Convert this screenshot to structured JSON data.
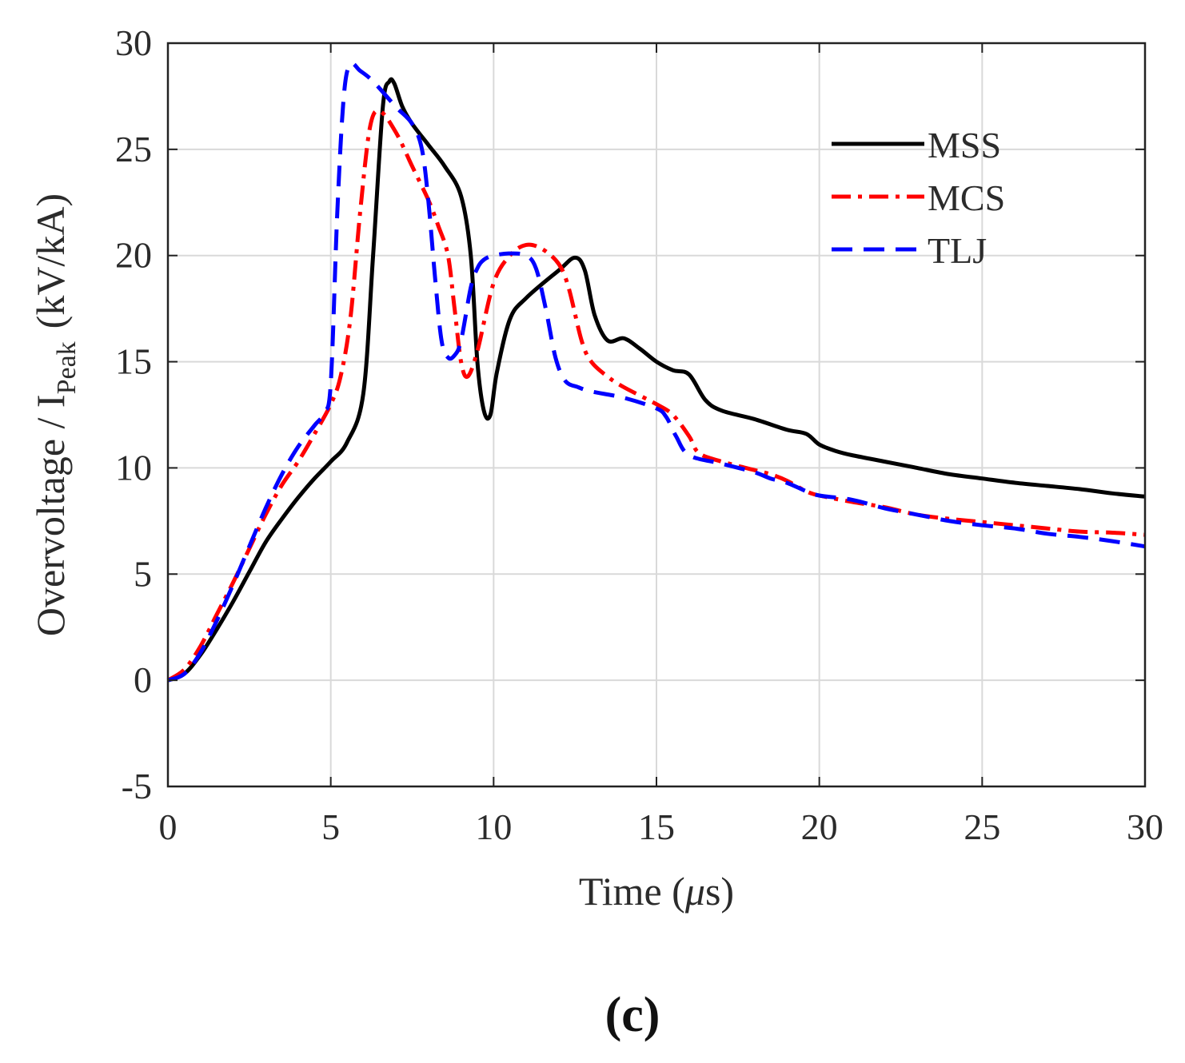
{
  "chart_data": {
    "type": "line",
    "title": "",
    "xlabel": "Time (μs)",
    "xlabel_parts": {
      "before": "Time (",
      "mu": "μ",
      "after": "s)"
    },
    "ylabel": "Overvoltage / I_Peak  (kV/kA)",
    "ylabel_parts": {
      "main": "Overvoltage / I",
      "sub": "Peak",
      "unit": "(kV/kA)"
    },
    "xlim": [
      0,
      30
    ],
    "ylim": [
      -5,
      30
    ],
    "xticks": [
      0,
      5,
      10,
      15,
      20,
      25,
      30
    ],
    "yticks": [
      -5,
      0,
      5,
      10,
      15,
      20,
      25,
      30
    ],
    "grid": true,
    "legend_position": "top-right",
    "panel_label": "(c)",
    "series": [
      {
        "name": "MSS",
        "color": "#000000",
        "style": "solid",
        "x": [
          0,
          0.5,
          1,
          1.5,
          2,
          2.5,
          3,
          3.5,
          4,
          4.5,
          5,
          5.5,
          6,
          6.3,
          6.6,
          6.8,
          6.95,
          7.2,
          7.5,
          8,
          8.5,
          9,
          9.3,
          9.5,
          9.7,
          9.9,
          10.1,
          10.5,
          11,
          12,
          12.5,
          12.8,
          13.1,
          13.5,
          14,
          14.5,
          15,
          15.5,
          16,
          16.5,
          17,
          18,
          19,
          19.6,
          20,
          20.5,
          21,
          22,
          23,
          24,
          25,
          26,
          27,
          28,
          29,
          30
        ],
        "y": [
          0,
          0.3,
          1.2,
          2.4,
          3.7,
          5.1,
          6.5,
          7.6,
          8.6,
          9.5,
          10.3,
          11.2,
          13.5,
          20,
          27,
          28.2,
          28.1,
          27,
          26.2,
          25.2,
          24.2,
          22.8,
          20,
          15,
          12.7,
          12.5,
          14.5,
          17,
          18,
          19.3,
          19.9,
          19.3,
          17.2,
          16,
          16.1,
          15.6,
          15,
          14.6,
          14.4,
          13.2,
          12.7,
          12.3,
          11.8,
          11.6,
          11.1,
          10.8,
          10.6,
          10.3,
          10,
          9.7,
          9.5,
          9.3,
          9.15,
          9,
          8.8,
          8.65
        ]
      },
      {
        "name": "MCS",
        "color": "#ff0000",
        "style": "dashdot",
        "x": [
          0,
          0.5,
          1,
          1.5,
          2,
          2.5,
          3,
          3.5,
          4,
          4.5,
          5,
          5.3,
          5.6,
          5.9,
          6.2,
          6.5,
          7,
          7.5,
          8,
          8.3,
          8.6,
          8.8,
          9,
          9.2,
          9.5,
          10,
          10.5,
          11,
          11.5,
          12,
          12.3,
          12.7,
          13,
          13.5,
          14,
          15,
          15.5,
          16,
          16.3,
          17,
          18,
          18.5,
          19,
          19.6,
          20,
          21,
          22,
          23,
          24,
          25,
          26,
          27,
          28,
          29,
          30
        ],
        "y": [
          0,
          0.5,
          1.6,
          3.1,
          4.6,
          6.2,
          7.8,
          9.2,
          10.3,
          11.6,
          13,
          14.3,
          17,
          22,
          26,
          26.8,
          25.8,
          24.2,
          22.6,
          21.4,
          20,
          17.5,
          15,
          14.3,
          15.5,
          18.7,
          20,
          20.5,
          20.3,
          19.6,
          18.5,
          16,
          15,
          14.3,
          13.8,
          13,
          12.5,
          11.5,
          10.7,
          10.3,
          9.9,
          9.7,
          9.4,
          8.9,
          8.7,
          8.4,
          8.15,
          7.8,
          7.6,
          7.45,
          7.3,
          7.15,
          7,
          6.95,
          6.85
        ]
      },
      {
        "name": "TLJ",
        "color": "#0000ff",
        "style": "dashed",
        "x": [
          0,
          0.5,
          1,
          1.5,
          2,
          2.5,
          3,
          3.5,
          4,
          4.5,
          4.8,
          5,
          5.2,
          5.4,
          5.6,
          5.9,
          6.3,
          7,
          7.5,
          7.8,
          8,
          8.2,
          8.4,
          8.6,
          8.8,
          9,
          9.3,
          9.5,
          9.7,
          10,
          10.5,
          11,
          11.3,
          11.6,
          11.9,
          12.2,
          12.6,
          13,
          14,
          15,
          15.3,
          15.6,
          16,
          17,
          18,
          18.5,
          19,
          19.6,
          20,
          21,
          22,
          23,
          24,
          25,
          26,
          27,
          28,
          29,
          30
        ],
        "y": [
          0,
          0.3,
          1.3,
          2.8,
          4.5,
          6.3,
          8.1,
          9.7,
          11,
          12,
          12.6,
          14,
          22,
          27.5,
          29,
          28.7,
          28.2,
          27,
          26.2,
          25,
          22.5,
          19,
          16,
          15.2,
          15.3,
          16,
          18.5,
          19.4,
          19.8,
          20,
          20.1,
          20,
          19.4,
          17.5,
          15.2,
          14.1,
          13.8,
          13.6,
          13.3,
          12.8,
          12.4,
          11.5,
          10.6,
          10.2,
          9.8,
          9.5,
          9.3,
          8.9,
          8.7,
          8.5,
          8.1,
          7.8,
          7.5,
          7.3,
          7.15,
          6.9,
          6.75,
          6.55,
          6.3
        ]
      }
    ]
  }
}
